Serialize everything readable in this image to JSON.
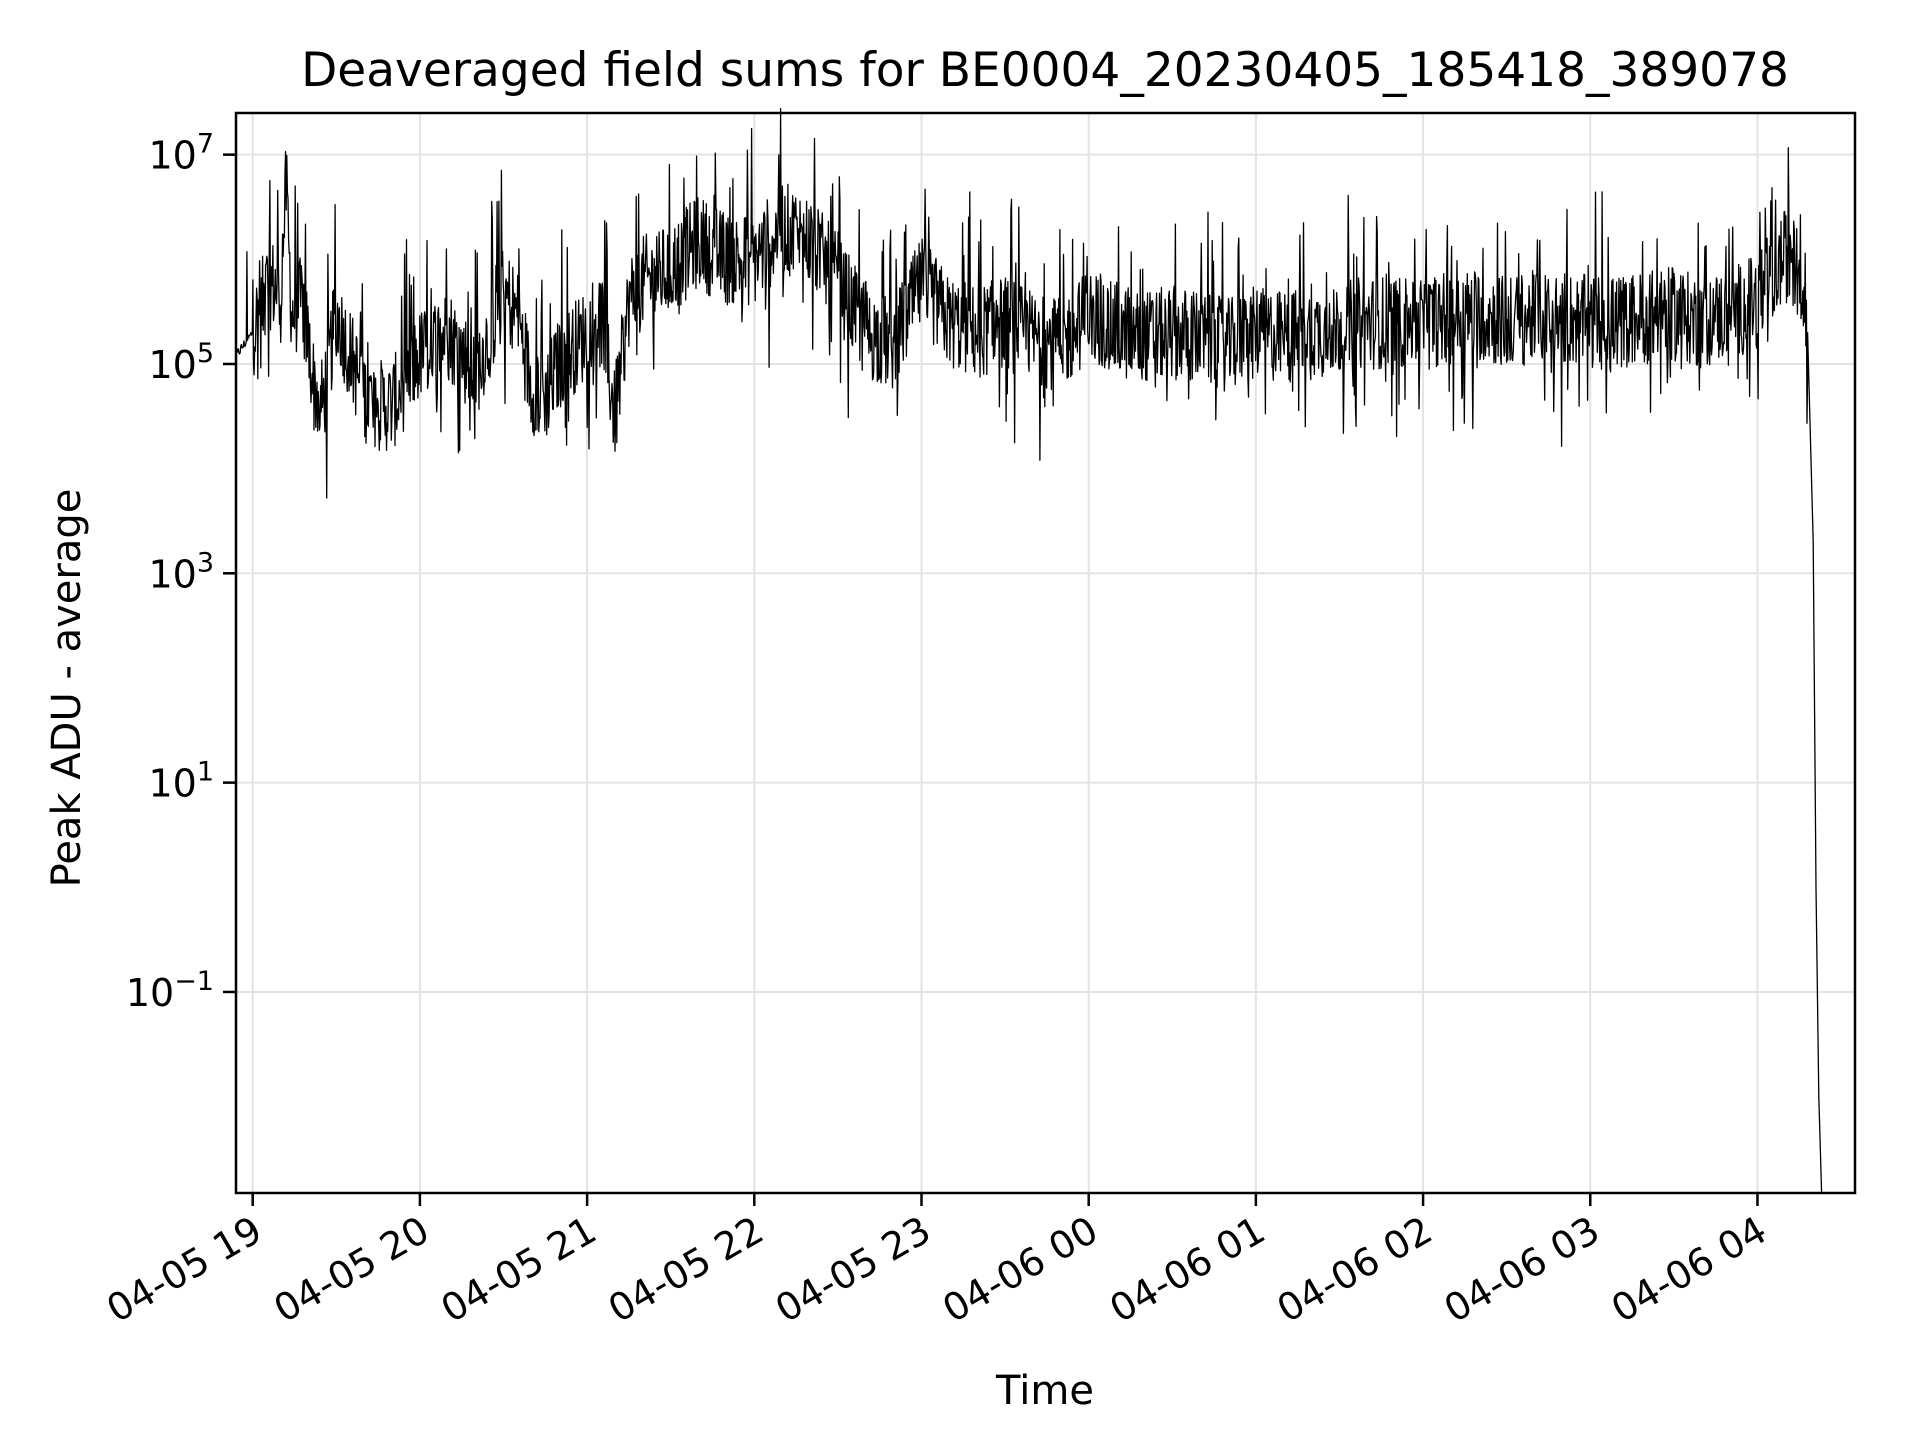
{
  "chart_data": {
    "type": "line",
    "title": "Deaveraged field sums for BE0004_20230405_185418_389078",
    "xlabel": "Time",
    "ylabel": "Peak ADU - average",
    "yscale": "log",
    "ylim": [
      0.0012,
      25000000
    ],
    "xlim": [
      "2023-04-05 18:54",
      "2023-04-06 04:35"
    ],
    "grid": true,
    "line_color": "#000000",
    "x_ticks": [
      {
        "value": "2023-04-05 19:00",
        "label": "04-05 19"
      },
      {
        "value": "2023-04-05 20:00",
        "label": "04-05 20"
      },
      {
        "value": "2023-04-05 21:00",
        "label": "04-05 21"
      },
      {
        "value": "2023-04-05 22:00",
        "label": "04-05 22"
      },
      {
        "value": "2023-04-05 23:00",
        "label": "04-05 23"
      },
      {
        "value": "2023-04-06 00:00",
        "label": "04-06 00"
      },
      {
        "value": "2023-04-06 01:00",
        "label": "04-06 01"
      },
      {
        "value": "2023-04-06 02:00",
        "label": "04-06 02"
      },
      {
        "value": "2023-04-06 03:00",
        "label": "04-06 03"
      },
      {
        "value": "2023-04-06 04:00",
        "label": "04-06 04"
      }
    ],
    "y_ticks": [
      {
        "value": 10000000,
        "base": "10",
        "exp": "7"
      },
      {
        "value": 100000,
        "base": "10",
        "exp": "5"
      },
      {
        "value": 1000,
        "base": "10",
        "exp": "3"
      },
      {
        "value": 10,
        "base": "10",
        "exp": "1"
      },
      {
        "value": 0.1,
        "base": "10",
        "exp": "−1"
      }
    ],
    "series": [
      {
        "x": [
          "2023-04-05 18:54",
          "2023-04-05 19:00",
          "2023-04-05 19:06",
          "2023-04-05 19:10",
          "2023-04-05 19:12",
          "2023-04-05 19:14",
          "2023-04-05 19:18",
          "2023-04-05 19:22",
          "2023-04-05 19:25",
          "2023-04-05 19:30",
          "2023-04-05 19:40",
          "2023-04-05 19:45",
          "2023-04-05 19:50",
          "2023-04-05 20:00",
          "2023-04-05 20:10",
          "2023-04-05 20:20",
          "2023-04-05 20:30",
          "2023-04-05 20:35",
          "2023-04-05 20:40",
          "2023-04-05 20:45",
          "2023-04-05 20:50",
          "2023-04-05 21:00",
          "2023-04-05 21:05",
          "2023-04-05 21:10",
          "2023-04-05 21:15",
          "2023-04-05 21:20",
          "2023-04-05 21:30",
          "2023-04-05 21:40",
          "2023-04-05 21:45",
          "2023-04-05 21:50",
          "2023-04-05 22:00",
          "2023-04-05 22:10",
          "2023-04-05 22:20",
          "2023-04-05 22:30",
          "2023-04-05 22:40",
          "2023-04-05 22:50",
          "2023-04-05 23:00",
          "2023-04-05 23:10",
          "2023-04-05 23:20",
          "2023-04-05 23:30",
          "2023-04-05 23:40",
          "2023-04-05 23:50",
          "2023-04-06 00:00",
          "2023-04-06 00:10",
          "2023-04-06 00:20",
          "2023-04-06 00:30",
          "2023-04-06 00:40",
          "2023-04-06 00:50",
          "2023-04-06 01:00",
          "2023-04-06 01:10",
          "2023-04-06 01:20",
          "2023-04-06 01:30",
          "2023-04-06 01:40",
          "2023-04-06 01:50",
          "2023-04-06 02:00",
          "2023-04-06 02:10",
          "2023-04-06 02:20",
          "2023-04-06 02:30",
          "2023-04-06 02:40",
          "2023-04-06 02:50",
          "2023-04-06 03:00",
          "2023-04-06 03:10",
          "2023-04-06 03:20",
          "2023-04-06 03:30",
          "2023-04-06 03:40",
          "2023-04-06 03:50",
          "2023-04-06 04:00",
          "2023-04-06 04:10",
          "2023-04-06 04:15",
          "2023-04-06 04:18",
          "2023-04-06 04:20",
          "2023-04-06 04:21",
          "2023-04-06 04:22",
          "2023-04-06 04:23"
        ],
        "y": [
          120000,
          200000,
          600000,
          500000,
          5000000,
          300000,
          400000,
          60000,
          40000,
          300000,
          50000,
          40000,
          40000,
          120000,
          200000,
          80000,
          500000,
          300000,
          60000,
          50000,
          100000,
          200000,
          300000,
          30000,
          400000,
          600000,
          800000,
          1500000,
          1200000,
          1000000,
          1000000,
          2000000,
          1500000,
          600000,
          200000,
          150000,
          600000,
          250000,
          200000,
          250000,
          180000,
          150000,
          300000,
          200000,
          180000,
          200000,
          180000,
          150000,
          200000,
          180000,
          200000,
          220000,
          250000,
          250000,
          250000,
          280000,
          300000,
          250000,
          280000,
          280000,
          250000,
          250000,
          280000,
          300000,
          250000,
          300000,
          400000,
          1100000,
          800000,
          200000,
          2000,
          1,
          0.01,
          0.0012
        ]
      }
    ]
  }
}
